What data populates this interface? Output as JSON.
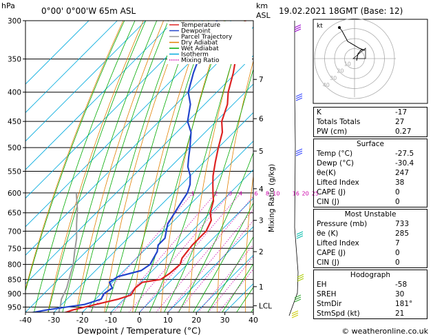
{
  "header": {
    "location": "0°00' 0°00'W 65m ASL",
    "datetime": "19.02.2021 18GMT (Base: 12)",
    "hpa_unit": "hPa",
    "km_unit": "km",
    "asl_unit": "ASL",
    "mixing_axis_label": "Mixing Ratio (g/kg)",
    "footer": "© weatheronline.co.uk"
  },
  "chart_data": {
    "type": "line",
    "title": "",
    "xlabel": "Dewpoint / Temperature (°C)",
    "ylabel": "hPa",
    "xlim": [
      -40,
      40
    ],
    "ylim": [
      1000,
      300
    ],
    "pressure_ticks": [
      300,
      350,
      400,
      450,
      500,
      550,
      600,
      650,
      700,
      750,
      800,
      850,
      900,
      950
    ],
    "temp_ticks": [
      -40,
      -30,
      -20,
      -10,
      0,
      10,
      20,
      30,
      40
    ],
    "km_ticks": [
      {
        "label": "7",
        "p": 380
      },
      {
        "label": "6",
        "p": 445
      },
      {
        "label": "5",
        "p": 507
      },
      {
        "label": "4",
        "p": 590
      },
      {
        "label": "3",
        "p": 670
      },
      {
        "label": "2",
        "p": 760
      },
      {
        "label": "1",
        "p": 875
      },
      {
        "label": "LCL",
        "p": 945
      }
    ],
    "mixing_ratio_labels": [
      "1",
      "2",
      "3",
      "4",
      "6",
      "8",
      "10",
      "16",
      "20",
      "25"
    ],
    "legend": {
      "placement": "top-right",
      "entries": [
        {
          "label": "Temperature",
          "color": "#dd2222",
          "style": "solid"
        },
        {
          "label": "Dewpoint",
          "color": "#2244cc",
          "style": "solid"
        },
        {
          "label": "Parcel Trajectory",
          "color": "#999999",
          "style": "solid"
        },
        {
          "label": "Dry Adiabat",
          "color": "#e08000",
          "style": "solid"
        },
        {
          "label": "Wet Adiabat",
          "color": "#00aa00",
          "style": "solid"
        },
        {
          "label": "Isotherm",
          "color": "#00aadd",
          "style": "solid"
        },
        {
          "label": "Mixing Ratio",
          "color": "#cc00aa",
          "style": "dotted"
        }
      ]
    },
    "series": [
      {
        "name": "Temperature",
        "color": "#dd2222",
        "points": [
          [
            -27.5,
            980
          ],
          [
            -24,
            960
          ],
          [
            -18,
            940
          ],
          [
            -12,
            920
          ],
          [
            -9,
            905
          ],
          [
            -10,
            880
          ],
          [
            -9.5,
            860
          ],
          [
            -4,
            850
          ],
          [
            -3,
            830
          ],
          [
            -2.5,
            800
          ],
          [
            -4,
            780
          ],
          [
            -4.5,
            760
          ],
          [
            -5,
            740
          ],
          [
            -5,
            720
          ],
          [
            -5,
            700
          ],
          [
            -7,
            670
          ],
          [
            -10,
            650
          ],
          [
            -13,
            620
          ],
          [
            -16,
            600
          ],
          [
            -19,
            580
          ],
          [
            -22,
            560
          ],
          [
            -26,
            530
          ],
          [
            -30,
            500
          ],
          [
            -34,
            470
          ],
          [
            -38,
            450
          ],
          [
            -42,
            420
          ],
          [
            -46,
            400
          ],
          [
            -51,
            370
          ],
          [
            -55,
            350
          ],
          [
            -61,
            320
          ],
          [
            -65,
            300
          ]
        ]
      },
      {
        "name": "Dewpoint",
        "color": "#2244cc",
        "points": [
          [
            -30.4,
            980
          ],
          [
            -39,
            975
          ],
          [
            -33,
            960
          ],
          [
            -22,
            940
          ],
          [
            -18,
            920
          ],
          [
            -19,
            900
          ],
          [
            -18,
            880
          ],
          [
            -21,
            860
          ],
          [
            -20,
            840
          ],
          [
            -14,
            820
          ],
          [
            -13,
            800
          ],
          [
            -14,
            780
          ],
          [
            -15,
            760
          ],
          [
            -17,
            740
          ],
          [
            -17,
            720
          ],
          [
            -19,
            700
          ],
          [
            -21,
            680
          ],
          [
            -22,
            660
          ],
          [
            -23,
            640
          ],
          [
            -24,
            620
          ],
          [
            -25,
            600
          ],
          [
            -27,
            580
          ],
          [
            -30,
            560
          ],
          [
            -34,
            540
          ],
          [
            -37,
            520
          ],
          [
            -40,
            500
          ],
          [
            -45,
            470
          ],
          [
            -50,
            450
          ],
          [
            -55,
            420
          ],
          [
            -60,
            400
          ],
          [
            -65,
            370
          ],
          [
            -68,
            350
          ],
          [
            -72,
            320
          ],
          [
            -75,
            300
          ]
        ]
      },
      {
        "name": "Parcel Trajectory",
        "color": "#999999",
        "points": [
          [
            -27.5,
            980
          ],
          [
            -29,
            960
          ],
          [
            -30,
            945
          ],
          [
            -32,
            920
          ],
          [
            -34,
            880
          ],
          [
            -37,
            840
          ],
          [
            -40,
            800
          ],
          [
            -44,
            760
          ],
          [
            -48,
            720
          ],
          [
            -53,
            680
          ],
          [
            -58,
            640
          ],
          [
            -64,
            600
          ]
        ]
      }
    ]
  },
  "hodograph": {
    "unit_label": "kt",
    "ring_labels": [
      "40",
      "30",
      "20",
      "10"
    ]
  },
  "stats": {
    "indices": [
      {
        "label": "K",
        "value": "-17"
      },
      {
        "label": "Totals Totals",
        "value": "27"
      },
      {
        "label": "PW (cm)",
        "value": "0.27"
      }
    ],
    "surface": {
      "title": "Surface",
      "rows": [
        {
          "label": "Temp (°C)",
          "value": "-27.5"
        },
        {
          "label": "Dewp (°C)",
          "value": "-30.4"
        },
        {
          "label": "θe(K)",
          "value": "247"
        },
        {
          "label": "Lifted Index",
          "value": "38"
        },
        {
          "label": "CAPE (J)",
          "value": "0"
        },
        {
          "label": "CIN (J)",
          "value": "0"
        }
      ]
    },
    "most_unstable": {
      "title": "Most Unstable",
      "rows": [
        {
          "label": "Pressure (mb)",
          "value": "733"
        },
        {
          "label": "θe (K)",
          "value": "285"
        },
        {
          "label": "Lifted Index",
          "value": "7"
        },
        {
          "label": "CAPE (J)",
          "value": "0"
        },
        {
          "label": "CIN (J)",
          "value": "0"
        }
      ]
    },
    "hodograph": {
      "title": "Hodograph",
      "rows": [
        {
          "label": "EH",
          "value": "-58"
        },
        {
          "label": "SREH",
          "value": "30"
        },
        {
          "label": "StmDir",
          "value": "181°"
        },
        {
          "label": "StmSpd (kt)",
          "value": "21"
        }
      ]
    }
  }
}
